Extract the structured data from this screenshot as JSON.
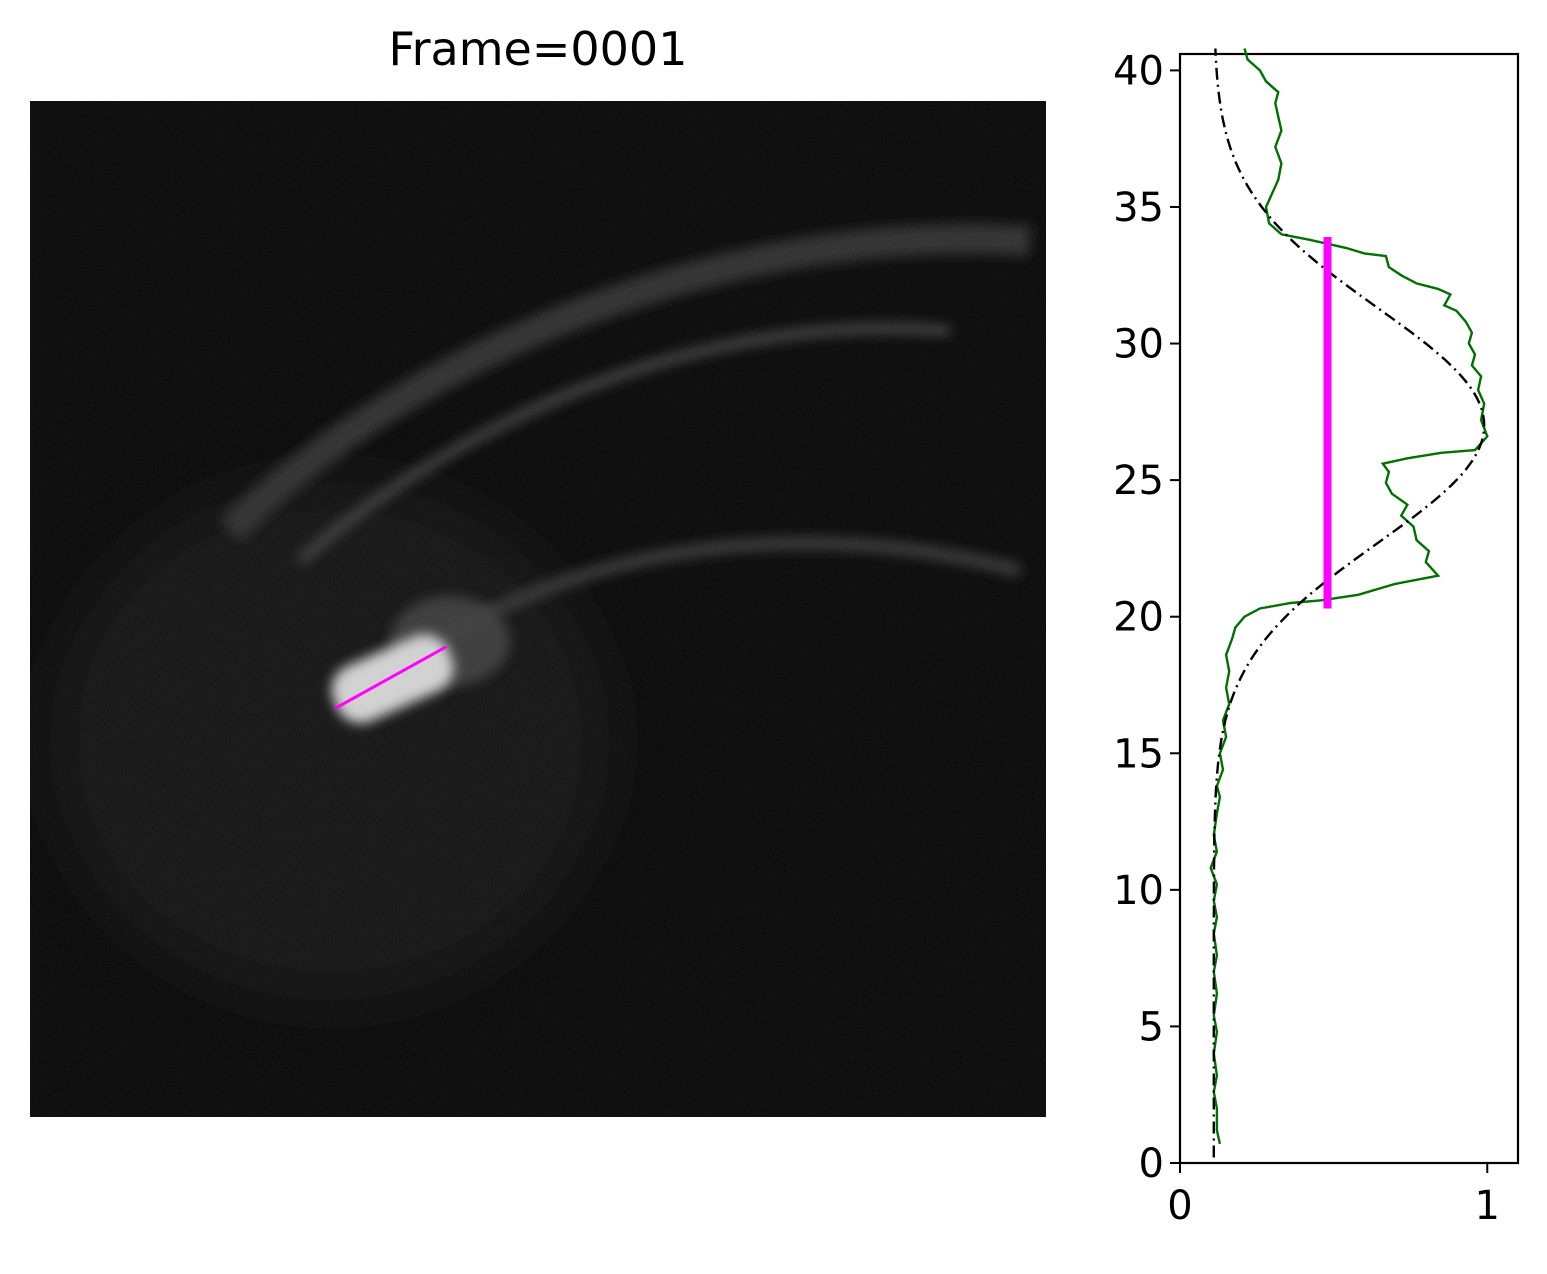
{
  "title": "Frame=0001",
  "image": {
    "background_color": "#030303",
    "marker_color": "#ff00ff",
    "description_hidden": true,
    "marker": {
      "x1_frac": 0.3,
      "y1_frac": 0.598,
      "x2_frac": 0.41,
      "y2_frac": 0.537
    }
  },
  "chart_data": {
    "type": "line",
    "title": "",
    "xlabel": "",
    "ylabel": "",
    "xlim": [
      0,
      1.1
    ],
    "ylim": [
      0,
      40.6
    ],
    "xticks": [
      0,
      1
    ],
    "xtick_labels": [
      "0",
      "1"
    ],
    "yticks": [
      0,
      5,
      10,
      15,
      20,
      25,
      30,
      35,
      40
    ],
    "ytick_labels": [
      "0",
      "5",
      "10",
      "15",
      "20",
      "25",
      "30",
      "35",
      "40"
    ],
    "grid": false,
    "series": [
      {
        "style": "solid",
        "color": "#007000",
        "points": [
          [
            0.13,
            0.7
          ],
          [
            0.12,
            1.2
          ],
          [
            0.12,
            2.0
          ],
          [
            0.11,
            2.6
          ],
          [
            0.12,
            3.2
          ],
          [
            0.11,
            4.0
          ],
          [
            0.12,
            4.8
          ],
          [
            0.11,
            5.4
          ],
          [
            0.12,
            6.2
          ],
          [
            0.11,
            7.0
          ],
          [
            0.12,
            7.6
          ],
          [
            0.11,
            8.4
          ],
          [
            0.12,
            9.0
          ],
          [
            0.11,
            9.6
          ],
          [
            0.12,
            10.2
          ],
          [
            0.1,
            10.8
          ],
          [
            0.12,
            11.4
          ],
          [
            0.11,
            12.0
          ],
          [
            0.12,
            12.8
          ],
          [
            0.13,
            13.4
          ],
          [
            0.12,
            13.8
          ],
          [
            0.14,
            14.4
          ],
          [
            0.13,
            15.0
          ],
          [
            0.15,
            15.6
          ],
          [
            0.14,
            16.2
          ],
          [
            0.16,
            16.8
          ],
          [
            0.15,
            17.4
          ],
          [
            0.16,
            18.0
          ],
          [
            0.15,
            18.6
          ],
          [
            0.17,
            19.2
          ],
          [
            0.18,
            19.6
          ],
          [
            0.21,
            20.0
          ],
          [
            0.26,
            20.3
          ],
          [
            0.36,
            20.5
          ],
          [
            0.46,
            20.6
          ],
          [
            0.58,
            20.8
          ],
          [
            0.7,
            21.2
          ],
          [
            0.84,
            21.5
          ],
          [
            0.8,
            22.0
          ],
          [
            0.81,
            22.4
          ],
          [
            0.77,
            22.8
          ],
          [
            0.76,
            23.3
          ],
          [
            0.72,
            23.7
          ],
          [
            0.74,
            24.1
          ],
          [
            0.69,
            24.5
          ],
          [
            0.67,
            24.9
          ],
          [
            0.68,
            25.3
          ],
          [
            0.66,
            25.6
          ],
          [
            0.74,
            25.8
          ],
          [
            0.85,
            26.0
          ],
          [
            0.96,
            26.1
          ],
          [
            1.0,
            26.6
          ],
          [
            0.98,
            27.2
          ],
          [
            0.99,
            27.8
          ],
          [
            0.97,
            28.3
          ],
          [
            0.98,
            28.8
          ],
          [
            0.95,
            29.2
          ],
          [
            0.96,
            29.6
          ],
          [
            0.94,
            30.0
          ],
          [
            0.95,
            30.4
          ],
          [
            0.93,
            30.8
          ],
          [
            0.9,
            31.2
          ],
          [
            0.86,
            31.4
          ],
          [
            0.88,
            31.8
          ],
          [
            0.84,
            32.0
          ],
          [
            0.77,
            32.2
          ],
          [
            0.72,
            32.5
          ],
          [
            0.68,
            32.8
          ],
          [
            0.67,
            33.2
          ],
          [
            0.6,
            33.3
          ],
          [
            0.54,
            33.5
          ],
          [
            0.42,
            33.8
          ],
          [
            0.33,
            34.0
          ],
          [
            0.29,
            34.4
          ],
          [
            0.28,
            35.0
          ],
          [
            0.3,
            35.5
          ],
          [
            0.32,
            36.0
          ],
          [
            0.33,
            36.6
          ],
          [
            0.31,
            37.2
          ],
          [
            0.33,
            37.8
          ],
          [
            0.32,
            38.3
          ],
          [
            0.31,
            38.8
          ],
          [
            0.32,
            39.2
          ],
          [
            0.28,
            39.6
          ],
          [
            0.26,
            40.0
          ],
          [
            0.22,
            40.4
          ],
          [
            0.21,
            40.8
          ]
        ]
      },
      {
        "style": "dashdot",
        "color": "#000000",
        "function": "gaussian",
        "params": {
          "baseline": 0.11,
          "amplitude": 0.88,
          "center": 27.0,
          "sigma": 4.3
        },
        "y_range": [
          0.2,
          40.8
        ]
      },
      {
        "style": "thick",
        "color": "#ff00ff",
        "points": [
          [
            0.48,
            20.3
          ],
          [
            0.48,
            33.9
          ]
        ]
      }
    ]
  }
}
